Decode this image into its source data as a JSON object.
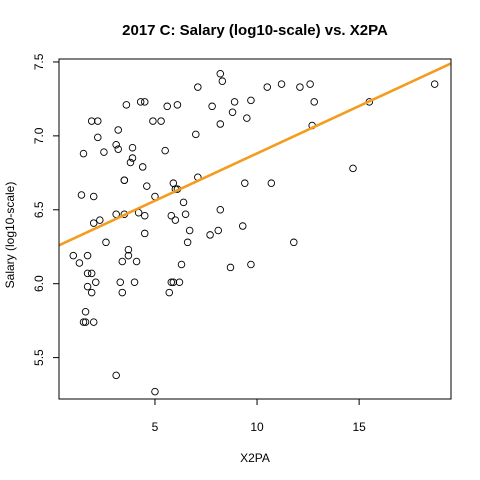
{
  "chart_data": {
    "type": "scatter",
    "title": "2017 C: Salary (log10-scale) vs. X2PA",
    "xlabel": "X2PA",
    "ylabel": "Salary (log10-scale)",
    "xlim": [
      0.3,
      19.5
    ],
    "ylim": [
      5.22,
      7.52
    ],
    "xticks": [
      5,
      10,
      15
    ],
    "yticks": [
      5.5,
      6.0,
      6.5,
      7.0,
      7.5
    ],
    "ytick_labels": [
      "5.5",
      "6.0",
      "6.5",
      "7.0",
      "7.5"
    ],
    "grid": false,
    "legend": "none",
    "point_color": "#000000",
    "fit_line": {
      "color": "#f39c1f",
      "x": [
        0.3,
        19.5
      ],
      "y": [
        6.26,
        7.49
      ]
    },
    "points": [
      [
        1.0,
        6.19
      ],
      [
        1.3,
        6.14
      ],
      [
        1.4,
        6.6
      ],
      [
        1.5,
        6.88
      ],
      [
        1.5,
        5.74
      ],
      [
        1.6,
        5.74
      ],
      [
        1.6,
        5.81
      ],
      [
        1.7,
        6.19
      ],
      [
        1.7,
        6.07
      ],
      [
        1.7,
        5.98
      ],
      [
        1.9,
        6.07
      ],
      [
        1.9,
        5.94
      ],
      [
        1.9,
        7.1
      ],
      [
        2.0,
        6.41
      ],
      [
        2.0,
        6.59
      ],
      [
        2.0,
        5.74
      ],
      [
        2.1,
        6.01
      ],
      [
        2.2,
        7.1
      ],
      [
        2.2,
        6.99
      ],
      [
        2.3,
        6.43
      ],
      [
        2.5,
        6.89
      ],
      [
        2.6,
        6.28
      ],
      [
        3.1,
        5.38
      ],
      [
        3.1,
        6.47
      ],
      [
        3.1,
        6.94
      ],
      [
        3.2,
        7.04
      ],
      [
        3.2,
        6.91
      ],
      [
        3.3,
        6.01
      ],
      [
        3.4,
        5.94
      ],
      [
        3.4,
        6.15
      ],
      [
        3.5,
        6.7
      ],
      [
        3.5,
        6.7
      ],
      [
        3.5,
        6.47
      ],
      [
        3.6,
        7.21
      ],
      [
        3.7,
        6.19
      ],
      [
        3.7,
        6.23
      ],
      [
        3.8,
        6.82
      ],
      [
        3.9,
        6.85
      ],
      [
        3.9,
        6.92
      ],
      [
        4.0,
        6.01
      ],
      [
        4.1,
        6.15
      ],
      [
        4.2,
        6.48
      ],
      [
        4.3,
        7.23
      ],
      [
        4.4,
        6.79
      ],
      [
        4.5,
        7.23
      ],
      [
        4.5,
        6.46
      ],
      [
        4.5,
        6.34
      ],
      [
        4.6,
        6.66
      ],
      [
        4.9,
        7.1
      ],
      [
        5.0,
        6.59
      ],
      [
        5.0,
        5.27
      ],
      [
        5.3,
        7.1
      ],
      [
        5.5,
        6.9
      ],
      [
        5.6,
        7.2
      ],
      [
        5.7,
        5.94
      ],
      [
        5.8,
        6.01
      ],
      [
        5.8,
        6.46
      ],
      [
        5.9,
        6.01
      ],
      [
        5.9,
        6.68
      ],
      [
        6.0,
        6.64
      ],
      [
        6.1,
        6.64
      ],
      [
        6.0,
        6.43
      ],
      [
        6.1,
        7.21
      ],
      [
        6.2,
        6.01
      ],
      [
        6.3,
        6.13
      ],
      [
        6.4,
        6.55
      ],
      [
        6.5,
        6.47
      ],
      [
        6.6,
        6.28
      ],
      [
        6.7,
        6.36
      ],
      [
        7.0,
        7.01
      ],
      [
        7.1,
        7.33
      ],
      [
        7.1,
        6.72
      ],
      [
        7.7,
        6.33
      ],
      [
        7.8,
        7.2
      ],
      [
        8.1,
        6.36
      ],
      [
        8.2,
        6.5
      ],
      [
        8.2,
        7.08
      ],
      [
        8.2,
        7.42
      ],
      [
        8.3,
        7.37
      ],
      [
        8.7,
        6.11
      ],
      [
        8.8,
        7.16
      ],
      [
        8.9,
        7.23
      ],
      [
        9.3,
        6.39
      ],
      [
        9.4,
        6.68
      ],
      [
        9.5,
        7.12
      ],
      [
        9.7,
        7.24
      ],
      [
        9.7,
        6.13
      ],
      [
        10.5,
        7.33
      ],
      [
        10.7,
        6.68
      ],
      [
        11.2,
        7.35
      ],
      [
        11.8,
        6.28
      ],
      [
        12.1,
        7.33
      ],
      [
        12.6,
        7.35
      ],
      [
        12.7,
        7.07
      ],
      [
        12.8,
        7.23
      ],
      [
        14.7,
        6.78
      ],
      [
        15.5,
        7.23
      ],
      [
        18.7,
        7.35
      ]
    ]
  }
}
